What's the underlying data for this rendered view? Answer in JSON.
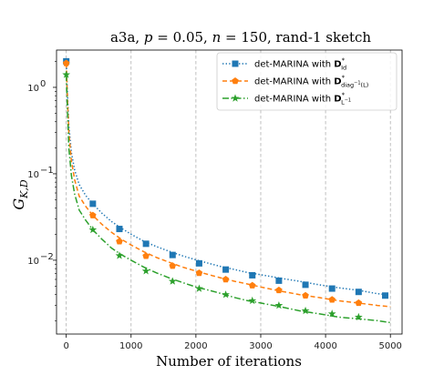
{
  "chart_data": {
    "type": "line",
    "title": "a3a, p = 0.05, n = 150, rand-1 sketch",
    "title_parts": {
      "prefix": "a3a, ",
      "p_symbol": "p",
      "p_value": " = 0.05, ",
      "n_symbol": "n",
      "n_value": " = 150, rand-1 sketch"
    },
    "xlabel": "Number of iterations",
    "ylabel": "G_{K,D}",
    "ylabel_parts": {
      "main": "G",
      "sub": "K,D"
    },
    "xscale": "linear",
    "yscale": "log",
    "xlim": [
      -150,
      5180
    ],
    "ylim": [
      0.0014,
      2.7
    ],
    "x_ticks": [
      0,
      1000,
      2000,
      3000,
      4000,
      5000
    ],
    "x_tick_labels": [
      "0",
      "1000",
      "2000",
      "3000",
      "4000",
      "5000"
    ],
    "y_ticks": [
      0.01,
      0.1,
      1
    ],
    "y_tick_labels": [
      "10",
      "10",
      "10"
    ],
    "y_tick_exponents": [
      "−2",
      "−1",
      "0"
    ],
    "grid": "vertical dashed at x ticks",
    "legend_position": "top-right",
    "series": [
      {
        "name": "det-MARINA with D*_Id",
        "legend": {
          "prefix": "det-MARINA with ",
          "symbol": "D",
          "sup": "*",
          "sub": "Id"
        },
        "color": "#1f77b4",
        "marker": "square",
        "linestyle": "dotted",
        "x": [
          0,
          20,
          40,
          80,
          130,
          200,
          300,
          410,
          550,
          700,
          850,
          1000,
          1200,
          1400,
          1600,
          1800,
          2000,
          2200,
          2400,
          2600,
          2800,
          3000,
          3300,
          3600,
          3900,
          4200,
          4500,
          4800,
          4960
        ],
        "y": [
          2.0,
          0.8,
          0.36,
          0.175,
          0.11,
          0.075,
          0.056,
          0.045,
          0.035,
          0.028,
          0.0235,
          0.02,
          0.0165,
          0.0143,
          0.0126,
          0.0112,
          0.0101,
          0.0092,
          0.0084,
          0.0078,
          0.0072,
          0.0068,
          0.0062,
          0.0057,
          0.0052,
          0.0048,
          0.0045,
          0.0041,
          0.004
        ],
        "marker_x": [
          0,
          410,
          820,
          1230,
          1640,
          2050,
          2460,
          2870,
          3280,
          3690,
          4100,
          4510,
          4920
        ],
        "marker_y": [
          2.0,
          0.045,
          0.023,
          0.0155,
          0.0115,
          0.0092,
          0.0078,
          0.0067,
          0.0058,
          0.0052,
          0.0047,
          0.0043,
          0.0039
        ]
      },
      {
        "name": "det-MARINA with D*_diag^-1(L)",
        "legend": {
          "prefix": "det-MARINA with ",
          "symbol": "D",
          "sup": "*",
          "sub": "diag",
          "sub_sup": "−1",
          "sub_tail": "(L)"
        },
        "color": "#ff7f0e",
        "marker": "pentagon",
        "linestyle": "dashed",
        "x": [
          0,
          20,
          40,
          80,
          130,
          200,
          300,
          410,
          550,
          700,
          850,
          1000,
          1200,
          1400,
          1600,
          1800,
          2000,
          2200,
          2400,
          2600,
          2800,
          3000,
          3300,
          3600,
          3900,
          4200,
          4500,
          4800,
          5000
        ],
        "y": [
          1.9,
          0.7,
          0.3,
          0.14,
          0.085,
          0.055,
          0.042,
          0.033,
          0.026,
          0.021,
          0.0175,
          0.015,
          0.0125,
          0.0107,
          0.0094,
          0.0083,
          0.0075,
          0.0068,
          0.0062,
          0.0057,
          0.0053,
          0.0049,
          0.0044,
          0.004,
          0.0037,
          0.0034,
          0.0032,
          0.003,
          0.0029
        ],
        "marker_x": [
          0,
          410,
          820,
          1230,
          1640,
          2050,
          2460,
          2870,
          3280,
          3690,
          4100,
          4510
        ],
        "marker_y": [
          1.9,
          0.033,
          0.0165,
          0.0112,
          0.0086,
          0.0071,
          0.006,
          0.0051,
          0.0045,
          0.0039,
          0.0035,
          0.0032
        ]
      },
      {
        "name": "det-MARINA with D*_L^-1",
        "legend": {
          "prefix": "det-MARINA with ",
          "symbol": "D",
          "sup": "*",
          "sub": "L",
          "sub_sup": "−1",
          "sub_tail": ""
        },
        "color": "#2ca02c",
        "marker": "star",
        "linestyle": "dashdot",
        "x": [
          0,
          20,
          40,
          80,
          130,
          200,
          300,
          410,
          550,
          700,
          850,
          1000,
          1200,
          1400,
          1600,
          1800,
          2000,
          2200,
          2400,
          2600,
          2800,
          3000,
          3300,
          3600,
          3900,
          4200,
          4500,
          4800,
          5000
        ],
        "y": [
          1.4,
          0.5,
          0.2,
          0.095,
          0.058,
          0.038,
          0.029,
          0.0225,
          0.0175,
          0.0138,
          0.0116,
          0.01,
          0.0083,
          0.0071,
          0.0062,
          0.0055,
          0.0049,
          0.0045,
          0.0041,
          0.0037,
          0.0034,
          0.0032,
          0.0029,
          0.0026,
          0.0024,
          0.0022,
          0.0021,
          0.002,
          0.0019
        ],
        "marker_x": [
          0,
          410,
          820,
          1230,
          1640,
          2050,
          2460,
          2870,
          3280,
          3690,
          4100,
          4510
        ],
        "marker_y": [
          1.4,
          0.0225,
          0.0113,
          0.0075,
          0.0057,
          0.0047,
          0.004,
          0.0034,
          0.003,
          0.0026,
          0.0024,
          0.0022
        ]
      }
    ]
  }
}
